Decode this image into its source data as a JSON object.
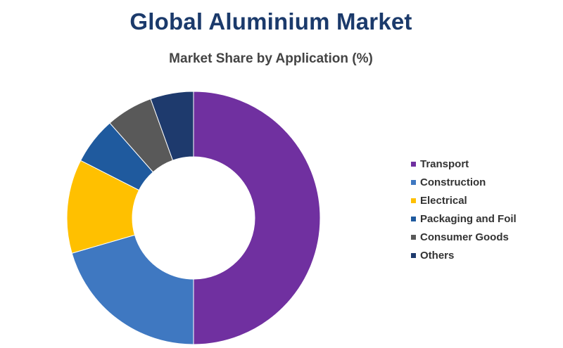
{
  "chart_data": {
    "type": "pie",
    "variant": "donut",
    "title": "Global Aluminium Market",
    "subtitle": "Market Share by Application (%)",
    "unit": "%",
    "legend_position": "right",
    "slices": [
      {
        "label": "Transport",
        "value": 50.0,
        "color": "#7030a0"
      },
      {
        "label": "Construction",
        "value": 20.5,
        "color": "#3f78c1"
      },
      {
        "label": "Electrical",
        "value": 12.0,
        "color": "#ffc000"
      },
      {
        "label": "Packaging and Foil",
        "value": 6.0,
        "color": "#1f5a9e"
      },
      {
        "label": "Consumer Goods",
        "value": 6.0,
        "color": "#595959"
      },
      {
        "label": "Others",
        "value": 5.5,
        "color": "#1e3a6d"
      }
    ]
  }
}
